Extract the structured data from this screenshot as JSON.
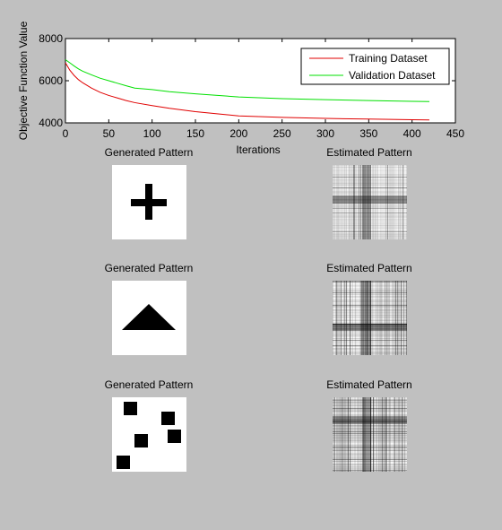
{
  "chart_data": {
    "type": "line",
    "title": "",
    "xlabel": "Iterations",
    "ylabel": "Objective Function Value",
    "xlim": [
      0,
      450
    ],
    "ylim": [
      4000,
      8000
    ],
    "xticks": [
      0,
      50,
      100,
      150,
      200,
      250,
      300,
      350,
      400,
      450
    ],
    "yticks": [
      4000,
      6000,
      8000
    ],
    "grid": false,
    "legend_position": "top-right",
    "series": [
      {
        "name": "Training Dataset",
        "color": "#e00000",
        "x": [
          0,
          5,
          10,
          15,
          20,
          30,
          40,
          50,
          60,
          70,
          80,
          100,
          120,
          150,
          200,
          250,
          300,
          350,
          400,
          420
        ],
        "y": [
          6850,
          6500,
          6250,
          6050,
          5900,
          5650,
          5450,
          5300,
          5180,
          5060,
          4960,
          4820,
          4690,
          4530,
          4330,
          4260,
          4210,
          4180,
          4150,
          4140
        ]
      },
      {
        "name": "Validation Dataset",
        "color": "#00e000",
        "x": [
          0,
          5,
          10,
          15,
          20,
          30,
          40,
          50,
          60,
          70,
          80,
          100,
          120,
          150,
          200,
          250,
          300,
          350,
          400,
          420
        ],
        "y": [
          7000,
          6850,
          6700,
          6560,
          6450,
          6280,
          6120,
          6000,
          5880,
          5760,
          5650,
          5580,
          5480,
          5380,
          5230,
          5150,
          5100,
          5060,
          5020,
          5010
        ]
      }
    ]
  },
  "panels": [
    {
      "generated_title": "Generated Pattern",
      "estimated_title": "Estimated Pattern",
      "shape": "plus"
    },
    {
      "generated_title": "Generated Pattern",
      "estimated_title": "Estimated Pattern",
      "shape": "triangle"
    },
    {
      "generated_title": "Generated Pattern",
      "estimated_title": "Estimated Pattern",
      "shape": "squares"
    }
  ],
  "colors": {
    "figure_background": "#c0c0c0",
    "axes_background": "#ffffff",
    "pattern_ink": "#000000"
  }
}
